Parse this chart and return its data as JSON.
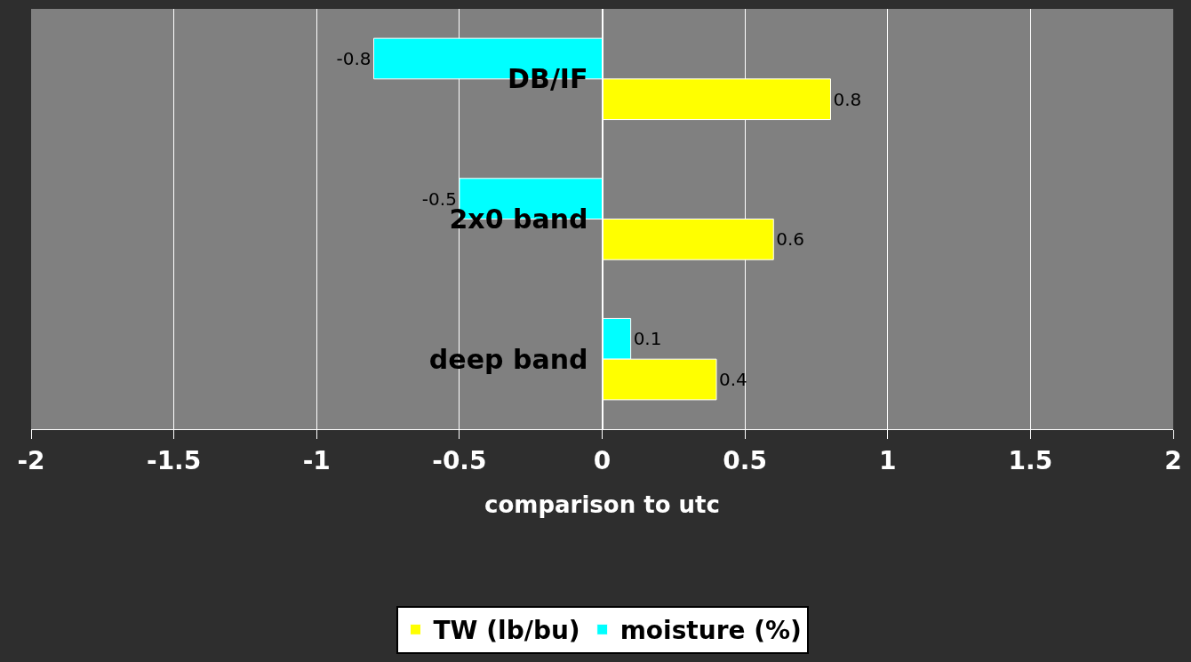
{
  "chart_data": {
    "type": "bar",
    "orientation": "horizontal",
    "xlabel": "comparison to utc",
    "categories": [
      "DB/IF",
      "2x0 band",
      "deep band"
    ],
    "series": [
      {
        "name": "TW (lb/bu)",
        "color": "#ffff00",
        "values": [
          0.8,
          0.6,
          0.4
        ]
      },
      {
        "name": "moisture (%)",
        "color": "#00ffff",
        "values": [
          -0.8,
          -0.5,
          0.1
        ]
      }
    ],
    "xlim": [
      -2,
      2
    ],
    "xticks": [
      -2,
      -1.5,
      -1,
      -0.5,
      0,
      0.5,
      1,
      1.5,
      2
    ],
    "grid": "x",
    "legend": "bottom",
    "data_labels": true
  }
}
